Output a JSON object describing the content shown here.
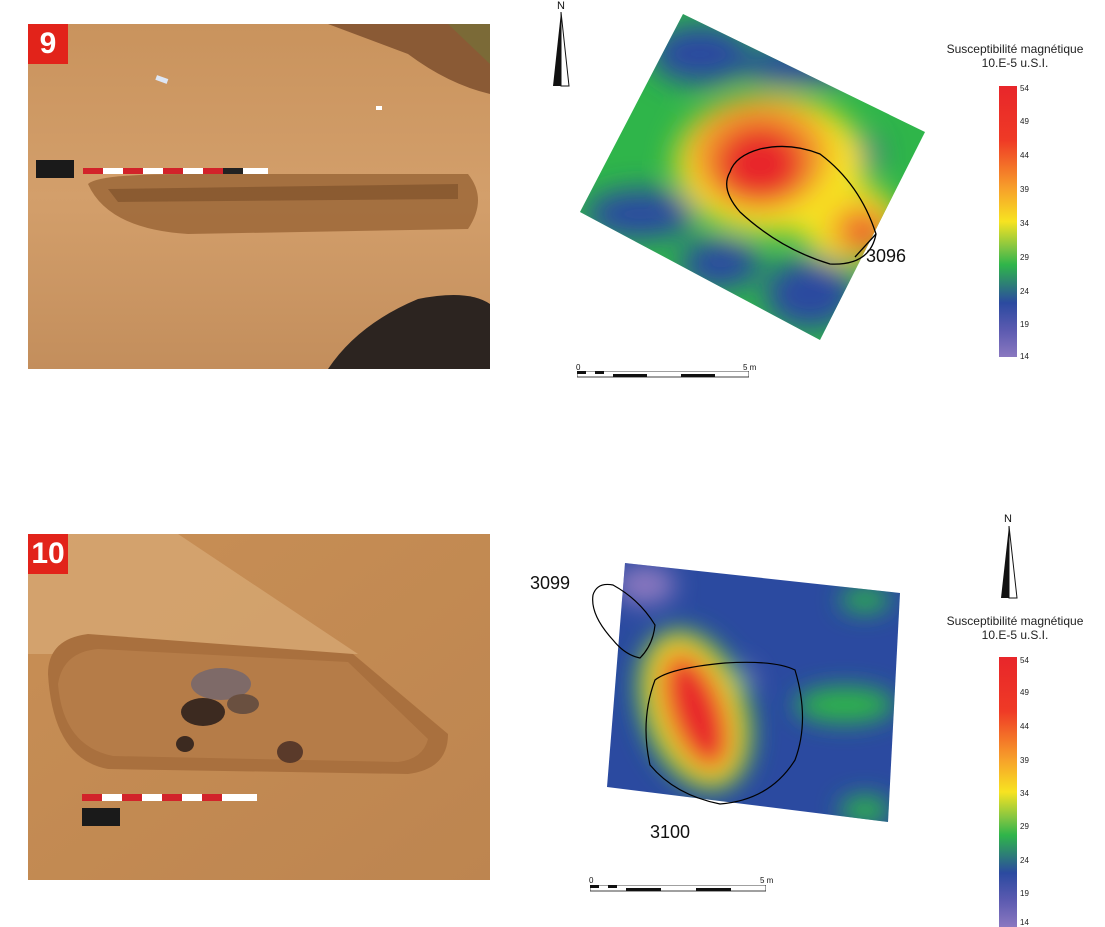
{
  "panels": [
    {
      "figure_number": "9",
      "feature_labels": [
        "3096"
      ],
      "north_label": "N",
      "scale_start": "0",
      "scale_end": "5 m",
      "legend_title_line1": "Susceptibilité magnétique",
      "legend_title_line2": "10.E-5 u.S.I.",
      "legend_ticks": [
        "54",
        "49",
        "44",
        "39",
        "34",
        "29",
        "24",
        "19",
        "14"
      ]
    },
    {
      "figure_number": "10",
      "feature_labels": [
        "3099",
        "3100"
      ],
      "north_label": "N",
      "scale_start": "0",
      "scale_end": "5 m",
      "legend_title_line1": "Susceptibilité magnétique",
      "legend_title_line2": "10.E-5 u.S.I.",
      "legend_ticks": [
        "54",
        "49",
        "44",
        "39",
        "34",
        "29",
        "24",
        "19",
        "14"
      ]
    }
  ],
  "colors": {
    "badge": "#e2231a",
    "high": "#e8262a",
    "mid": "#f7e321",
    "low_mid": "#2fb54a",
    "low": "#2b4aa0",
    "lowest": "#8a78c0"
  }
}
